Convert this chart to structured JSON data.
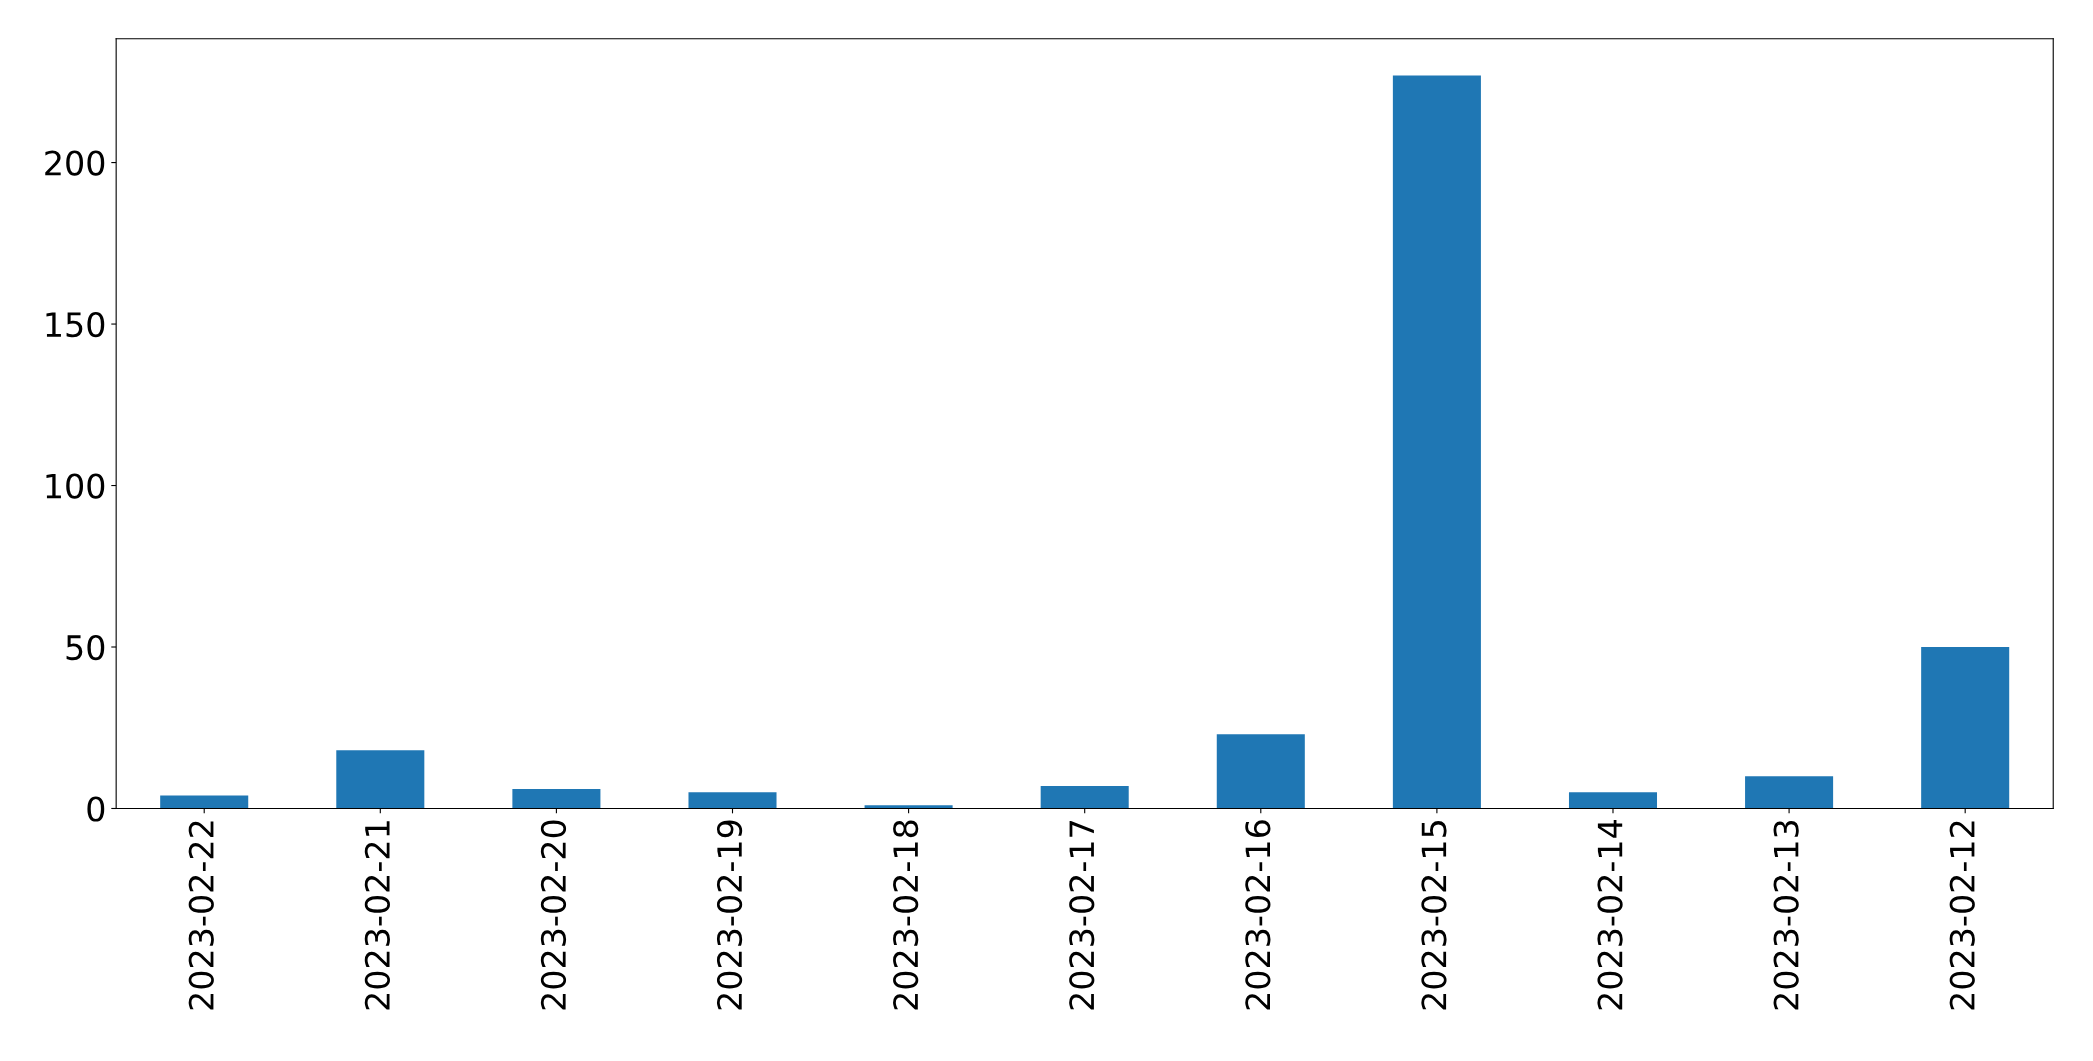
{
  "chart_data": {
    "type": "bar",
    "categories": [
      "2023-02-22",
      "2023-02-21",
      "2023-02-20",
      "2023-02-19",
      "2023-02-18",
      "2023-02-17",
      "2023-02-16",
      "2023-02-15",
      "2023-02-14",
      "2023-02-13",
      "2023-02-12"
    ],
    "values": [
      4,
      18,
      6,
      5,
      1,
      7,
      23,
      227,
      5,
      10,
      50
    ],
    "color": "#1f77b4",
    "ylim": [
      0,
      238.35
    ],
    "yticks": [
      0,
      50,
      100,
      150,
      200
    ],
    "grid": false
  }
}
